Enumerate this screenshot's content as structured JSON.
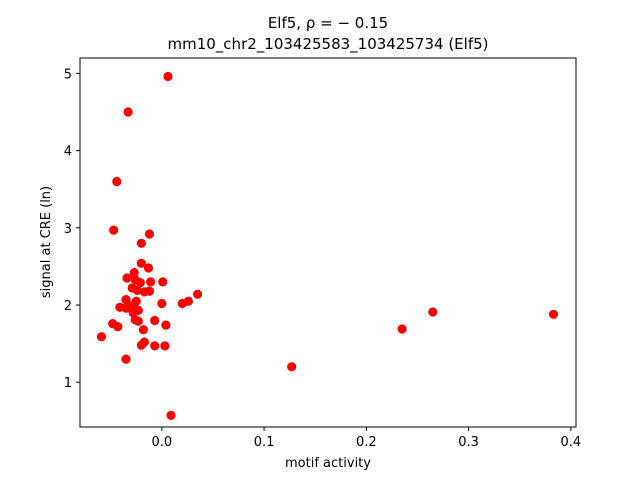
{
  "chart_data": {
    "type": "scatter",
    "title_line1": "Elf5, ρ = − 0.15",
    "title_line2": "mm10_chr2_103425583_103425734 (Elf5)",
    "xlabel": "motif activity",
    "ylabel": "signal at CRE (ln)",
    "xlim": [
      -0.08,
      0.405
    ],
    "ylim": [
      0.42,
      5.2
    ],
    "x_ticks": [
      {
        "value": 0.0,
        "label": "0.0"
      },
      {
        "value": 0.1,
        "label": "0.1"
      },
      {
        "value": 0.2,
        "label": "0.2"
      },
      {
        "value": 0.3,
        "label": "0.3"
      },
      {
        "value": 0.4,
        "label": "0.4"
      }
    ],
    "y_ticks": [
      {
        "value": 1,
        "label": "1"
      },
      {
        "value": 2,
        "label": "2"
      },
      {
        "value": 3,
        "label": "3"
      },
      {
        "value": 4,
        "label": "4"
      },
      {
        "value": 5,
        "label": "5"
      }
    ],
    "grid": false,
    "marker_color": "#ff0000",
    "points": [
      {
        "x": 0.006,
        "y": 4.96
      },
      {
        "x": -0.033,
        "y": 4.5
      },
      {
        "x": -0.044,
        "y": 3.6
      },
      {
        "x": -0.047,
        "y": 2.97
      },
      {
        "x": -0.012,
        "y": 2.92
      },
      {
        "x": -0.02,
        "y": 2.8
      },
      {
        "x": -0.02,
        "y": 2.54
      },
      {
        "x": -0.013,
        "y": 2.48
      },
      {
        "x": -0.027,
        "y": 2.42
      },
      {
        "x": -0.034,
        "y": 2.35
      },
      {
        "x": -0.026,
        "y": 2.33
      },
      {
        "x": -0.021,
        "y": 2.29
      },
      {
        "x": 0.001,
        "y": 2.3
      },
      {
        "x": -0.011,
        "y": 2.3
      },
      {
        "x": -0.029,
        "y": 2.22
      },
      {
        "x": -0.024,
        "y": 2.19
      },
      {
        "x": -0.017,
        "y": 2.17
      },
      {
        "x": -0.012,
        "y": 2.18
      },
      {
        "x": 0.035,
        "y": 2.14
      },
      {
        "x": -0.035,
        "y": 2.07
      },
      {
        "x": -0.025,
        "y": 2.05
      },
      {
        "x": -0.033,
        "y": 2.0
      },
      {
        "x": 0.026,
        "y": 2.05
      },
      {
        "x": 0.02,
        "y": 2.02
      },
      {
        "x": 0.0,
        "y": 2.02
      },
      {
        "x": -0.041,
        "y": 1.97
      },
      {
        "x": -0.035,
        "y": 1.96
      },
      {
        "x": -0.027,
        "y": 1.95
      },
      {
        "x": -0.023,
        "y": 1.93
      },
      {
        "x": -0.028,
        "y": 1.9
      },
      {
        "x": -0.026,
        "y": 1.81
      },
      {
        "x": -0.023,
        "y": 1.79
      },
      {
        "x": -0.007,
        "y": 1.8
      },
      {
        "x": -0.048,
        "y": 1.76
      },
      {
        "x": -0.043,
        "y": 1.72
      },
      {
        "x": 0.004,
        "y": 1.74
      },
      {
        "x": -0.018,
        "y": 1.68
      },
      {
        "x": -0.059,
        "y": 1.59
      },
      {
        "x": -0.017,
        "y": 1.52
      },
      {
        "x": -0.02,
        "y": 1.48
      },
      {
        "x": -0.007,
        "y": 1.47
      },
      {
        "x": 0.003,
        "y": 1.47
      },
      {
        "x": -0.035,
        "y": 1.3
      },
      {
        "x": 0.009,
        "y": 0.57
      },
      {
        "x": 0.127,
        "y": 1.2
      },
      {
        "x": 0.235,
        "y": 1.69
      },
      {
        "x": 0.265,
        "y": 1.91
      },
      {
        "x": 0.383,
        "y": 1.88
      }
    ]
  }
}
